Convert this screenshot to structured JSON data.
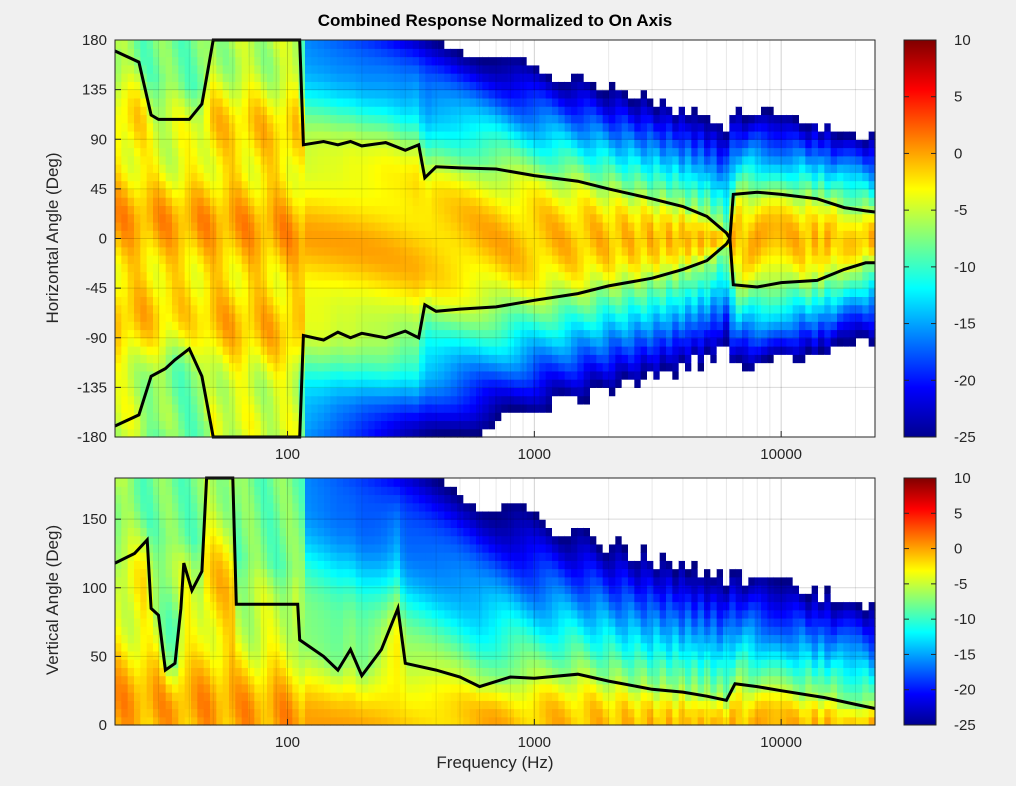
{
  "chart_data": [
    {
      "type": "heatmap",
      "title": "Combined Response Normalized to On Axis",
      "xlabel": "",
      "ylabel": "Horizontal Angle (Deg)",
      "xscale": "log",
      "xlim": [
        20,
        24000
      ],
      "ylim": [
        -180,
        180
      ],
      "xticks": [
        100,
        1000,
        10000
      ],
      "xtick_labels": [
        "100",
        "1000",
        "10000"
      ],
      "yticks": [
        180,
        135,
        90,
        45,
        0,
        -45,
        -90,
        -135,
        -180
      ],
      "ytick_labels": [
        "180",
        "135",
        "90",
        "45",
        "0",
        "-45",
        "-90",
        "-135",
        "-180"
      ],
      "grid": true,
      "colorbar": {
        "range": [
          -25,
          10
        ],
        "ticks": [
          10,
          5,
          0,
          -5,
          -10,
          -15,
          -20,
          -25
        ],
        "tick_labels": [
          "10",
          "5",
          "0",
          "-5",
          "-10",
          "-15",
          "-20",
          "-25"
        ],
        "colormap": "jet",
        "below_range_color": "#ffffff"
      },
      "contour_level_db": -6,
      "contour_upper_edge": [
        {
          "x": 20,
          "y": 170
        },
        {
          "x": 25,
          "y": 160
        },
        {
          "x": 28,
          "y": 112
        },
        {
          "x": 30,
          "y": 108
        },
        {
          "x": 40,
          "y": 108
        },
        {
          "x": 45,
          "y": 122
        },
        {
          "x": 50,
          "y": 180
        },
        {
          "x": 112,
          "y": 180
        },
        {
          "x": 116,
          "y": 85
        },
        {
          "x": 140,
          "y": 88
        },
        {
          "x": 160,
          "y": 85
        },
        {
          "x": 180,
          "y": 88
        },
        {
          "x": 200,
          "y": 84
        },
        {
          "x": 250,
          "y": 87
        },
        {
          "x": 300,
          "y": 80
        },
        {
          "x": 340,
          "y": 85
        },
        {
          "x": 360,
          "y": 55
        },
        {
          "x": 400,
          "y": 65
        },
        {
          "x": 500,
          "y": 64
        },
        {
          "x": 700,
          "y": 63
        },
        {
          "x": 1000,
          "y": 57
        },
        {
          "x": 1500,
          "y": 52
        },
        {
          "x": 2000,
          "y": 45
        },
        {
          "x": 3000,
          "y": 36
        },
        {
          "x": 4000,
          "y": 29
        },
        {
          "x": 5000,
          "y": 20
        },
        {
          "x": 6000,
          "y": 5
        },
        {
          "x": 6200,
          "y": 0
        },
        {
          "x": 6400,
          "y": 40
        },
        {
          "x": 8000,
          "y": 42
        },
        {
          "x": 10000,
          "y": 40
        },
        {
          "x": 14000,
          "y": 36
        },
        {
          "x": 18000,
          "y": 28
        },
        {
          "x": 22000,
          "y": 25
        },
        {
          "x": 24000,
          "y": 24
        }
      ],
      "contour_lower_edge": [
        {
          "x": 20,
          "y": -170
        },
        {
          "x": 25,
          "y": -160
        },
        {
          "x": 28,
          "y": -125
        },
        {
          "x": 32,
          "y": -118
        },
        {
          "x": 35,
          "y": -110
        },
        {
          "x": 40,
          "y": -100
        },
        {
          "x": 45,
          "y": -125
        },
        {
          "x": 50,
          "y": -180
        },
        {
          "x": 112,
          "y": -180
        },
        {
          "x": 116,
          "y": -88
        },
        {
          "x": 140,
          "y": -92
        },
        {
          "x": 160,
          "y": -85
        },
        {
          "x": 180,
          "y": -90
        },
        {
          "x": 200,
          "y": -86
        },
        {
          "x": 250,
          "y": -90
        },
        {
          "x": 300,
          "y": -84
        },
        {
          "x": 340,
          "y": -90
        },
        {
          "x": 360,
          "y": -60
        },
        {
          "x": 400,
          "y": -66
        },
        {
          "x": 500,
          "y": -64
        },
        {
          "x": 700,
          "y": -62
        },
        {
          "x": 1000,
          "y": -56
        },
        {
          "x": 1500,
          "y": -50
        },
        {
          "x": 2000,
          "y": -43
        },
        {
          "x": 3000,
          "y": -36
        },
        {
          "x": 4000,
          "y": -28
        },
        {
          "x": 5000,
          "y": -20
        },
        {
          "x": 6000,
          "y": -5
        },
        {
          "x": 6200,
          "y": 0
        },
        {
          "x": 6400,
          "y": -42
        },
        {
          "x": 8000,
          "y": -44
        },
        {
          "x": 10000,
          "y": -40
        },
        {
          "x": 14000,
          "y": -38
        },
        {
          "x": 18000,
          "y": -28
        },
        {
          "x": 22000,
          "y": -22
        },
        {
          "x": 24000,
          "y": -22
        }
      ]
    },
    {
      "type": "heatmap",
      "title": "",
      "xlabel": "Frequency (Hz)",
      "ylabel": "Vertical Angle (Deg)",
      "xscale": "log",
      "xlim": [
        20,
        24000
      ],
      "ylim": [
        0,
        180
      ],
      "xticks": [
        100,
        1000,
        10000
      ],
      "xtick_labels": [
        "100",
        "1000",
        "10000"
      ],
      "yticks": [
        150,
        100,
        50,
        0
      ],
      "ytick_labels": [
        "150",
        "100",
        "50",
        "0"
      ],
      "grid": true,
      "colorbar": {
        "range": [
          -25,
          10
        ],
        "ticks": [
          10,
          5,
          0,
          -5,
          -10,
          -15,
          -20,
          -25
        ],
        "tick_labels": [
          "10",
          "5",
          "0",
          "-5",
          "-10",
          "-15",
          "-20",
          "-25"
        ],
        "colormap": "jet",
        "below_range_color": "#ffffff"
      },
      "contour_level_db": -6,
      "contour_edge": [
        {
          "x": 20,
          "y": 118
        },
        {
          "x": 24,
          "y": 125
        },
        {
          "x": 27,
          "y": 135
        },
        {
          "x": 28,
          "y": 85
        },
        {
          "x": 30,
          "y": 80
        },
        {
          "x": 32,
          "y": 40
        },
        {
          "x": 35,
          "y": 45
        },
        {
          "x": 37,
          "y": 85
        },
        {
          "x": 38,
          "y": 118
        },
        {
          "x": 41,
          "y": 98
        },
        {
          "x": 45,
          "y": 112
        },
        {
          "x": 47,
          "y": 180
        },
        {
          "x": 60,
          "y": 180
        },
        {
          "x": 62,
          "y": 88
        },
        {
          "x": 110,
          "y": 88
        },
        {
          "x": 112,
          "y": 62
        },
        {
          "x": 140,
          "y": 50
        },
        {
          "x": 160,
          "y": 40
        },
        {
          "x": 180,
          "y": 55
        },
        {
          "x": 200,
          "y": 36
        },
        {
          "x": 240,
          "y": 55
        },
        {
          "x": 280,
          "y": 85
        },
        {
          "x": 300,
          "y": 45
        },
        {
          "x": 400,
          "y": 40
        },
        {
          "x": 500,
          "y": 35
        },
        {
          "x": 600,
          "y": 28
        },
        {
          "x": 800,
          "y": 35
        },
        {
          "x": 1000,
          "y": 34
        },
        {
          "x": 1500,
          "y": 37
        },
        {
          "x": 2000,
          "y": 32
        },
        {
          "x": 3000,
          "y": 26
        },
        {
          "x": 4000,
          "y": 24
        },
        {
          "x": 5000,
          "y": 21
        },
        {
          "x": 6000,
          "y": 18
        },
        {
          "x": 6500,
          "y": 30
        },
        {
          "x": 8000,
          "y": 28
        },
        {
          "x": 10000,
          "y": 25
        },
        {
          "x": 15000,
          "y": 20
        },
        {
          "x": 20000,
          "y": 15
        },
        {
          "x": 24000,
          "y": 12
        }
      ]
    }
  ]
}
